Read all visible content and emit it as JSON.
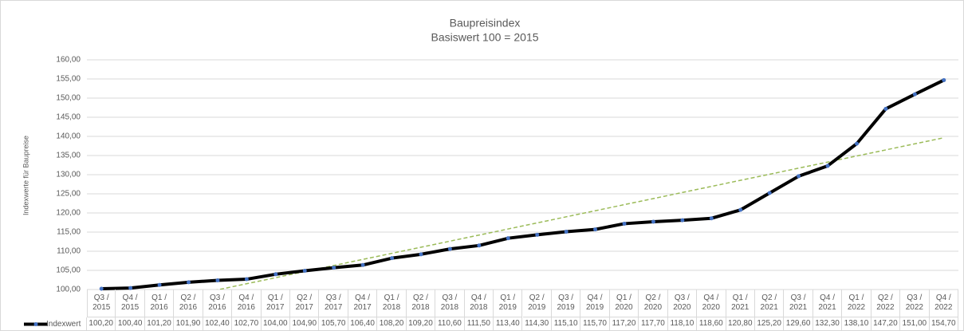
{
  "chart_data": {
    "type": "line",
    "title": "Baupreisindex",
    "subtitle": "Basiswert 100 = 2015",
    "y_label": "Indexwerte für Baupreise",
    "categories": [
      "Q3 / 2015",
      "Q4 / 2015",
      "Q1 / 2016",
      "Q2 / 2016",
      "Q3 / 2016",
      "Q4 / 2016",
      "Q1 / 2017",
      "Q2 / 2017",
      "Q3 / 2017",
      "Q4 / 2017",
      "Q1 / 2018",
      "Q2 / 2018",
      "Q3 / 2018",
      "Q4 / 2018",
      "Q1 / 2019",
      "Q2 / 2019",
      "Q3 / 2019",
      "Q4 / 2019",
      "Q1 / 2020",
      "Q2 / 2020",
      "Q3 / 2020",
      "Q4 / 2020",
      "Q1 / 2021",
      "Q2 / 2021",
      "Q3 / 2021",
      "Q4 / 2021",
      "Q1 / 2022",
      "Q2 / 2022",
      "Q3 / 2022",
      "Q4 / 2022"
    ],
    "series": [
      {
        "name": "Indexwert",
        "color": "#000000",
        "marker_color": "#4472c4",
        "values": [
          100.2,
          100.4,
          101.2,
          101.9,
          102.4,
          102.7,
          104.0,
          104.9,
          105.7,
          106.4,
          108.2,
          109.2,
          110.6,
          111.5,
          113.4,
          114.3,
          115.1,
          115.7,
          117.2,
          117.7,
          118.1,
          118.6,
          120.8,
          125.2,
          129.6,
          132.3,
          138.1,
          147.2,
          151.0,
          154.7
        ],
        "value_labels": [
          "100,20",
          "100,40",
          "101,20",
          "101,90",
          "102,40",
          "102,70",
          "104,00",
          "104,90",
          "105,70",
          "106,40",
          "108,20",
          "109,20",
          "110,60",
          "111,50",
          "113,40",
          "114,30",
          "115,10",
          "115,70",
          "117,20",
          "117,70",
          "118,10",
          "118,60",
          "120,80",
          "125,20",
          "129,60",
          "132,30",
          "138,10",
          "147,20",
          "151,00",
          "154,70"
        ],
        "trendline": "linear",
        "trendline_color": "#9bbb59"
      }
    ],
    "ylim": [
      100,
      160
    ],
    "yticks": [
      {
        "value": 100,
        "label": "100,00"
      },
      {
        "value": 105,
        "label": "105,00"
      },
      {
        "value": 110,
        "label": "110,00"
      },
      {
        "value": 115,
        "label": "115,00"
      },
      {
        "value": 120,
        "label": "120,00"
      },
      {
        "value": 125,
        "label": "125,00"
      },
      {
        "value": 130,
        "label": "130,00"
      },
      {
        "value": 135,
        "label": "135,00"
      },
      {
        "value": 140,
        "label": "140,00"
      },
      {
        "value": 145,
        "label": "145,00"
      },
      {
        "value": 150,
        "label": "150,00"
      },
      {
        "value": 155,
        "label": "155,00"
      },
      {
        "value": 160,
        "label": "160,00"
      }
    ],
    "grid": true
  }
}
